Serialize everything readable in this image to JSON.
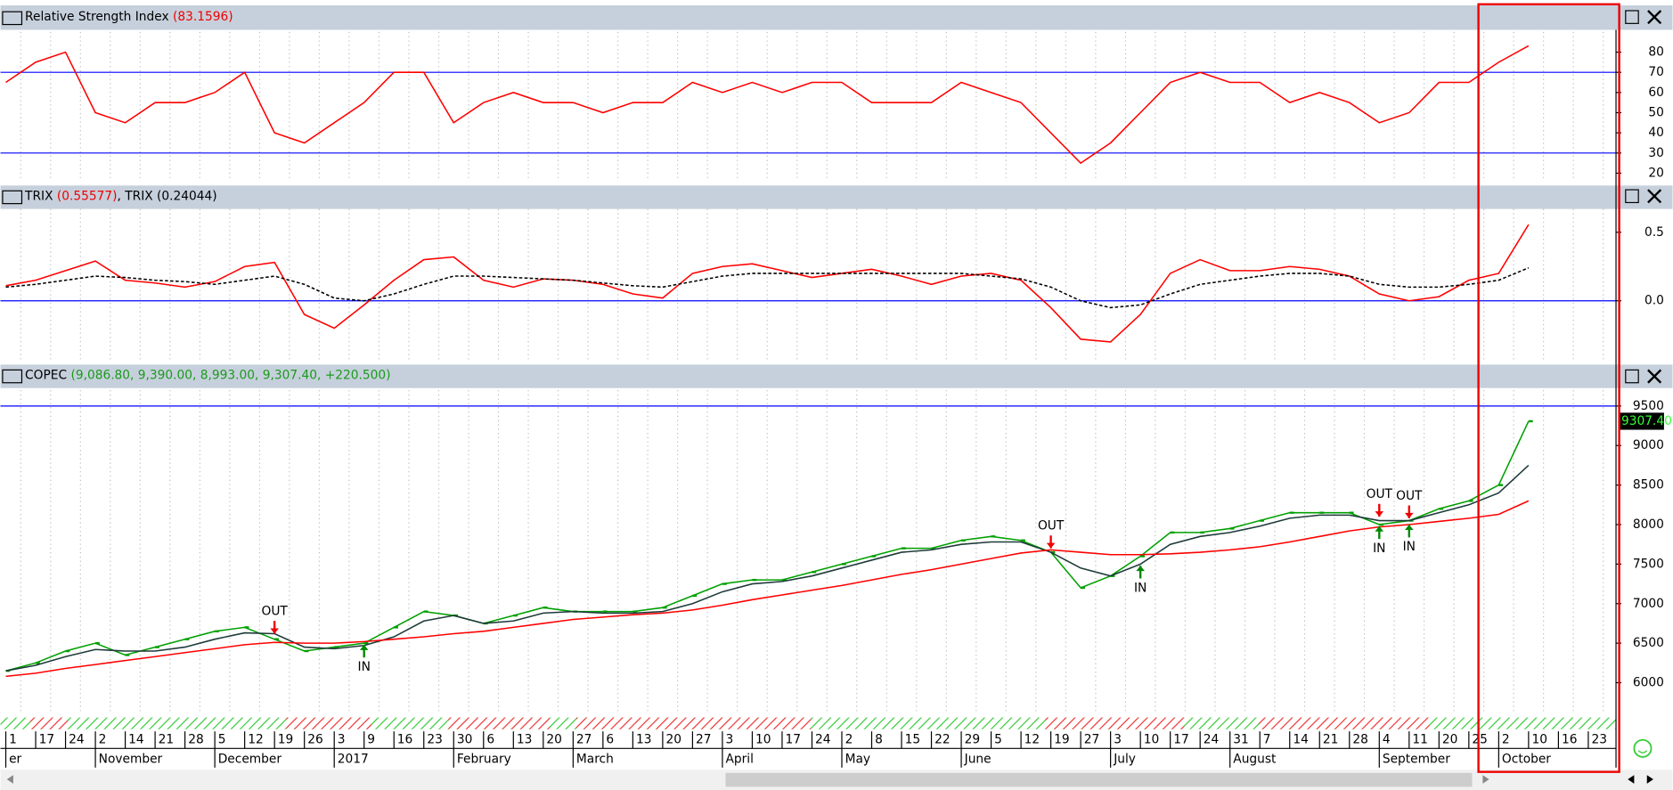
{
  "chart_data": [
    {
      "type": "line",
      "title": "Relative Strength Index",
      "series": [
        {
          "name": "Relative Strength Index",
          "color": "#ff0000",
          "values": [
            65,
            75,
            80,
            50,
            45,
            55,
            55,
            60,
            70,
            40,
            35,
            45,
            55,
            70,
            70,
            45,
            55,
            60,
            55,
            55,
            50,
            55,
            55,
            65,
            60,
            65,
            60,
            65,
            65,
            55,
            55,
            55,
            65,
            60,
            55,
            40,
            25,
            35,
            50,
            65,
            70,
            65,
            65,
            55,
            60,
            55,
            45,
            50,
            65,
            65,
            75,
            83.1596,
            null,
            null
          ]
        }
      ],
      "levels": [
        30,
        70
      ],
      "level_color": "#0000ff",
      "ylim": [
        16,
        90
      ],
      "yticks": [
        20,
        30,
        40,
        50,
        60,
        70,
        80
      ]
    },
    {
      "type": "line",
      "series": [
        {
          "name": "TRIX",
          "color": "#ff0000",
          "values": [
            0.11,
            0.15,
            0.22,
            0.29,
            0.15,
            0.13,
            0.1,
            0.14,
            0.25,
            0.28,
            -0.1,
            -0.2,
            -0.03,
            0.15,
            0.3,
            0.32,
            0.15,
            0.1,
            0.16,
            0.15,
            0.12,
            0.05,
            0.02,
            0.2,
            0.25,
            0.27,
            0.22,
            0.17,
            0.2,
            0.23,
            0.18,
            0.12,
            0.18,
            0.2,
            0.15,
            -0.05,
            -0.28,
            -0.3,
            -0.1,
            0.2,
            0.3,
            0.22,
            0.22,
            0.25,
            0.23,
            0.18,
            0.05,
            0,
            0.03,
            0.15,
            0.2,
            0.55577,
            null,
            null
          ]
        },
        {
          "name": "TRIX",
          "color": "#000000",
          "dashed": true,
          "values": [
            0.1,
            0.12,
            0.15,
            0.18,
            0.17,
            0.15,
            0.14,
            0.12,
            0.15,
            0.18,
            0.12,
            0.02,
            0,
            0.05,
            0.12,
            0.18,
            0.18,
            0.17,
            0.16,
            0.15,
            0.13,
            0.11,
            0.1,
            0.14,
            0.18,
            0.2,
            0.2,
            0.2,
            0.2,
            0.2,
            0.2,
            0.2,
            0.2,
            0.18,
            0.16,
            0.1,
            0,
            -0.05,
            -0.03,
            0.05,
            0.12,
            0.15,
            0.18,
            0.2,
            0.2,
            0.18,
            0.12,
            0.1,
            0.1,
            0.12,
            0.15,
            0.24044,
            null,
            null
          ]
        }
      ],
      "levels": [
        0
      ],
      "level_color": "#0000ff",
      "ylim": [
        -0.45,
        0.67
      ],
      "yticks": [
        {
          "value": 0,
          "label": "0.0"
        },
        0.5
      ]
    },
    {
      "type": "ohlc",
      "title": "COPEC",
      "ohlc": [
        {
          "value": 9086.8,
          "label": "9,086.80"
        },
        {
          "value": 9390,
          "label": "9,390.00"
        },
        {
          "value": 8993,
          "label": "8,993.00"
        },
        {
          "value": 9307.4,
          "label": "9,307.40"
        },
        {
          "value": 220.5,
          "label": "+220.500"
        }
      ],
      "categories": [
        "1",
        "17",
        "24",
        "2",
        "14",
        "21",
        "28",
        "5",
        "12",
        "19",
        "26",
        "3",
        "9",
        "16",
        "23",
        "30",
        "6",
        "13",
        "20",
        "27",
        "6",
        "13",
        "20",
        "27",
        "3",
        "10",
        "17",
        "24",
        "2",
        "8",
        "15",
        "22",
        "29",
        "5",
        "12",
        "19",
        "27",
        "3",
        "10",
        "17",
        "24",
        "31",
        "7",
        "14",
        "21",
        "28",
        "4",
        "11",
        "20",
        "25",
        "2",
        "10",
        "16",
        "23"
      ],
      "months": [
        "er",
        null,
        null,
        "November",
        null,
        null,
        null,
        "December",
        null,
        null,
        null,
        "2017",
        null,
        null,
        null,
        "February",
        null,
        null,
        null,
        "March",
        null,
        null,
        null,
        null,
        "April",
        null,
        null,
        null,
        "May",
        null,
        null,
        null,
        "June",
        null,
        null,
        null,
        null,
        "July",
        null,
        null,
        null,
        "August",
        null,
        null,
        null,
        null,
        "September",
        null,
        null,
        null,
        "October",
        null,
        null,
        null
      ],
      "series": [
        {
          "name": "COPEC",
          "color": "#00a000",
          "values": [
            6150,
            6250,
            6400,
            6500,
            6350,
            6450,
            6550,
            6650,
            6700,
            6550,
            6400,
            6450,
            6500,
            6700,
            6900,
            6850,
            6750,
            6850,
            6950,
            6900,
            6900,
            6900,
            6950,
            7100,
            7250,
            7300,
            7300,
            7400,
            7500,
            7600,
            7700,
            7700,
            7800,
            7850,
            7800,
            7650,
            7200,
            7350,
            7600,
            7900,
            7900,
            7950,
            8050,
            8150,
            8150,
            8150,
            8000,
            8050,
            8200,
            8300,
            8500,
            9307.4,
            null,
            null
          ]
        },
        {
          "color": "#1e3a3a",
          "values": [
            6150,
            6220,
            6330,
            6420,
            6400,
            6400,
            6450,
            6550,
            6630,
            6620,
            6450,
            6430,
            6470,
            6580,
            6780,
            6850,
            6750,
            6780,
            6880,
            6900,
            6880,
            6880,
            6900,
            7000,
            7150,
            7250,
            7280,
            7350,
            7450,
            7550,
            7650,
            7680,
            7750,
            7780,
            7780,
            7650,
            7450,
            7350,
            7500,
            7750,
            7850,
            7900,
            7980,
            8080,
            8120,
            8120,
            8050,
            8050,
            8150,
            8250,
            8400,
            8750,
            null,
            null
          ]
        },
        {
          "color": "#ff0000",
          "values": [
            6080,
            6120,
            6180,
            6230,
            6280,
            6330,
            6380,
            6430,
            6480,
            6510,
            6500,
            6500,
            6520,
            6550,
            6580,
            6620,
            6650,
            6700,
            6750,
            6800,
            6830,
            6860,
            6880,
            6920,
            6980,
            7050,
            7110,
            7170,
            7230,
            7300,
            7370,
            7430,
            7500,
            7570,
            7640,
            7680,
            7650,
            7620,
            7620,
            7630,
            7650,
            7680,
            7720,
            7780,
            7850,
            7920,
            7970,
            8000,
            8040,
            8080,
            8130,
            8300,
            null,
            null
          ]
        }
      ],
      "signals": [
        {
          "label": "OUT",
          "at": 9,
          "value": 6620,
          "direction": "down"
        },
        {
          "label": "IN",
          "at": 12,
          "value": 6480,
          "direction": "up"
        },
        {
          "label": "OUT",
          "at": 35,
          "value": 7700,
          "direction": "down"
        },
        {
          "label": "IN",
          "at": 38,
          "value": 7480,
          "direction": "up"
        },
        {
          "label": "OUT",
          "at": 46,
          "value": 8100,
          "direction": "down"
        },
        {
          "label": "OUT",
          "at": 47,
          "value": 8080,
          "direction": "down"
        },
        {
          "label": "IN",
          "at": 46,
          "value": 7980,
          "direction": "up"
        },
        {
          "label": "IN",
          "at": 47,
          "value": 8000,
          "direction": "up"
        }
      ],
      "last_price": {
        "value": 9307.4,
        "label": "9307.40"
      },
      "levels": [
        9500
      ],
      "level_color": "#0000ff",
      "ylim": [
        5600,
        9700
      ],
      "yticks": [
        6000,
        6500,
        7000,
        7500,
        8000,
        8500,
        9000,
        9500
      ]
    }
  ]
}
